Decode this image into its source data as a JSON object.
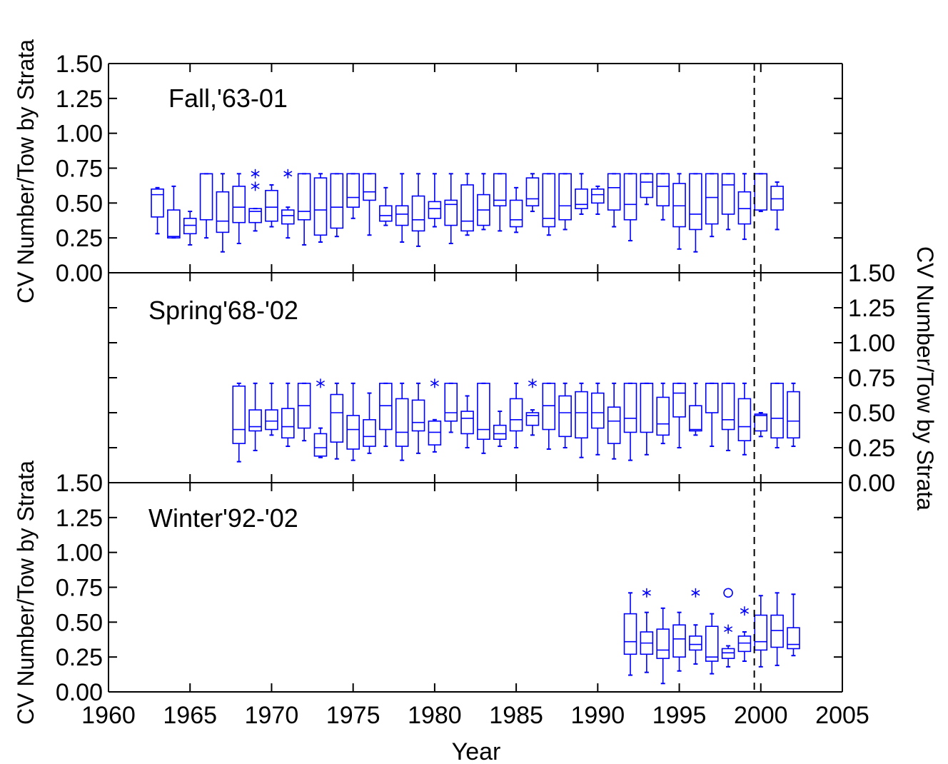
{
  "chart_data": {
    "type": "box",
    "xlabel": "Year",
    "xlim": [
      1960,
      2005
    ],
    "x_ticks": [
      "1960",
      "1965",
      "1970",
      "1975",
      "1980",
      "1985",
      "1990",
      "1995",
      "2000",
      "2005"
    ],
    "ylim": [
      0,
      1.5
    ],
    "y_ticks": [
      "0.00",
      "0.25",
      "0.50",
      "0.75",
      "1.00",
      "1.25",
      "1.50"
    ],
    "ylabel_left": "CV Number/Tow by Strata",
    "ylabel_right": "CV Number/Tow by Strata",
    "reference_line_year": 1999.6,
    "colors": {
      "boxes": "#0000ff",
      "axes": "#000000"
    },
    "panels": [
      {
        "title": "Fall,'63-01",
        "boxes": [
          {
            "year": 1963,
            "min": 0.28,
            "q1": 0.4,
            "median": 0.56,
            "q3": 0.6,
            "max": 0.61
          },
          {
            "year": 1964,
            "min": 0.25,
            "q1": 0.25,
            "median": 0.26,
            "q3": 0.45,
            "max": 0.62
          },
          {
            "year": 1965,
            "min": 0.2,
            "q1": 0.28,
            "median": 0.34,
            "q3": 0.39,
            "max": 0.44
          },
          {
            "year": 1966,
            "min": 0.25,
            "q1": 0.38,
            "median": 0.71,
            "q3": 0.71,
            "max": 0.71
          },
          {
            "year": 1967,
            "min": 0.15,
            "q1": 0.29,
            "median": 0.37,
            "q3": 0.58,
            "max": 0.71
          },
          {
            "year": 1968,
            "min": 0.21,
            "q1": 0.36,
            "median": 0.47,
            "q3": 0.62,
            "max": 0.71
          },
          {
            "year": 1969,
            "min": 0.3,
            "q1": 0.36,
            "median": 0.44,
            "q3": 0.46,
            "max": 0.46,
            "outliers": [
              {
                "y": 0.71,
                "mark": "*"
              },
              {
                "y": 0.62,
                "mark": "*"
              }
            ]
          },
          {
            "year": 1970,
            "min": 0.33,
            "q1": 0.37,
            "median": 0.47,
            "q3": 0.59,
            "max": 0.63
          },
          {
            "year": 1971,
            "min": 0.25,
            "q1": 0.35,
            "median": 0.41,
            "q3": 0.45,
            "max": 0.47,
            "outliers": [
              {
                "y": 0.71,
                "mark": "*"
              }
            ]
          },
          {
            "year": 1972,
            "min": 0.2,
            "q1": 0.38,
            "median": 0.44,
            "q3": 0.71,
            "max": 0.71
          },
          {
            "year": 1973,
            "min": 0.22,
            "q1": 0.27,
            "median": 0.45,
            "q3": 0.68,
            "max": 0.71
          },
          {
            "year": 1974,
            "min": 0.26,
            "q1": 0.32,
            "median": 0.47,
            "q3": 0.71,
            "max": 0.71
          },
          {
            "year": 1975,
            "min": 0.39,
            "q1": 0.47,
            "median": 0.54,
            "q3": 0.71,
            "max": 0.71
          },
          {
            "year": 1976,
            "min": 0.27,
            "q1": 0.52,
            "median": 0.58,
            "q3": 0.71,
            "max": 0.71
          },
          {
            "year": 1977,
            "min": 0.34,
            "q1": 0.37,
            "median": 0.41,
            "q3": 0.48,
            "max": 0.61
          },
          {
            "year": 1978,
            "min": 0.22,
            "q1": 0.34,
            "median": 0.42,
            "q3": 0.48,
            "max": 0.71
          },
          {
            "year": 1979,
            "min": 0.19,
            "q1": 0.3,
            "median": 0.38,
            "q3": 0.55,
            "max": 0.71
          },
          {
            "year": 1980,
            "min": 0.33,
            "q1": 0.39,
            "median": 0.46,
            "q3": 0.51,
            "max": 0.71
          },
          {
            "year": 1981,
            "min": 0.21,
            "q1": 0.34,
            "median": 0.49,
            "q3": 0.52,
            "max": 0.71
          },
          {
            "year": 1982,
            "min": 0.27,
            "q1": 0.3,
            "median": 0.37,
            "q3": 0.63,
            "max": 0.71
          },
          {
            "year": 1983,
            "min": 0.31,
            "q1": 0.34,
            "median": 0.45,
            "q3": 0.56,
            "max": 0.71
          },
          {
            "year": 1984,
            "min": 0.3,
            "q1": 0.48,
            "median": 0.52,
            "q3": 0.71,
            "max": 0.71
          },
          {
            "year": 1985,
            "min": 0.29,
            "q1": 0.33,
            "median": 0.38,
            "q3": 0.52,
            "max": 0.61
          },
          {
            "year": 1986,
            "min": 0.44,
            "q1": 0.48,
            "median": 0.53,
            "q3": 0.68,
            "max": 0.71
          },
          {
            "year": 1987,
            "min": 0.27,
            "q1": 0.33,
            "median": 0.39,
            "q3": 0.71,
            "max": 0.71
          },
          {
            "year": 1988,
            "min": 0.31,
            "q1": 0.38,
            "median": 0.48,
            "q3": 0.71,
            "max": 0.71
          },
          {
            "year": 1989,
            "min": 0.42,
            "q1": 0.46,
            "median": 0.49,
            "q3": 0.6,
            "max": 0.71
          },
          {
            "year": 1990,
            "min": 0.42,
            "q1": 0.5,
            "median": 0.56,
            "q3": 0.6,
            "max": 0.62
          },
          {
            "year": 1991,
            "min": 0.33,
            "q1": 0.45,
            "median": 0.61,
            "q3": 0.71,
            "max": 0.71
          },
          {
            "year": 1992,
            "min": 0.23,
            "q1": 0.38,
            "median": 0.49,
            "q3": 0.71,
            "max": 0.71
          },
          {
            "year": 1993,
            "min": 0.49,
            "q1": 0.54,
            "median": 0.65,
            "q3": 0.71,
            "max": 0.71
          },
          {
            "year": 1994,
            "min": 0.38,
            "q1": 0.48,
            "median": 0.62,
            "q3": 0.71,
            "max": 0.71
          },
          {
            "year": 1995,
            "min": 0.17,
            "q1": 0.33,
            "median": 0.48,
            "q3": 0.64,
            "max": 0.71
          },
          {
            "year": 1996,
            "min": 0.15,
            "q1": 0.31,
            "median": 0.42,
            "q3": 0.71,
            "max": 0.71
          },
          {
            "year": 1997,
            "min": 0.26,
            "q1": 0.35,
            "median": 0.54,
            "q3": 0.71,
            "max": 0.71
          },
          {
            "year": 1998,
            "min": 0.31,
            "q1": 0.42,
            "median": 0.63,
            "q3": 0.71,
            "max": 0.71
          },
          {
            "year": 1999,
            "min": 0.24,
            "q1": 0.35,
            "median": 0.46,
            "q3": 0.58,
            "max": 0.71
          },
          {
            "year": 2000,
            "min": 0.44,
            "q1": 0.45,
            "median": 0.71,
            "q3": 0.71,
            "max": 0.71
          },
          {
            "year": 2001,
            "min": 0.31,
            "q1": 0.45,
            "median": 0.53,
            "q3": 0.62,
            "max": 0.65
          }
        ]
      },
      {
        "title": "Spring'68-'02",
        "boxes": [
          {
            "year": 1968,
            "min": 0.15,
            "q1": 0.28,
            "median": 0.38,
            "q3": 0.69,
            "max": 0.71
          },
          {
            "year": 1969,
            "min": 0.23,
            "q1": 0.37,
            "median": 0.4,
            "q3": 0.52,
            "max": 0.71
          },
          {
            "year": 1970,
            "min": 0.34,
            "q1": 0.38,
            "median": 0.44,
            "q3": 0.52,
            "max": 0.71
          },
          {
            "year": 1971,
            "min": 0.26,
            "q1": 0.32,
            "median": 0.4,
            "q3": 0.53,
            "max": 0.71
          },
          {
            "year": 1972,
            "min": 0.3,
            "q1": 0.39,
            "median": 0.55,
            "q3": 0.71,
            "max": 0.71
          },
          {
            "year": 1973,
            "min": 0.18,
            "q1": 0.19,
            "median": 0.25,
            "q3": 0.35,
            "max": 0.39,
            "outliers": [
              {
                "y": 0.71,
                "mark": "*"
              }
            ]
          },
          {
            "year": 1974,
            "min": 0.17,
            "q1": 0.29,
            "median": 0.5,
            "q3": 0.63,
            "max": 0.71
          },
          {
            "year": 1975,
            "min": 0.16,
            "q1": 0.24,
            "median": 0.38,
            "q3": 0.48,
            "max": 0.71
          },
          {
            "year": 1976,
            "min": 0.21,
            "q1": 0.26,
            "median": 0.33,
            "q3": 0.45,
            "max": 0.64
          },
          {
            "year": 1977,
            "min": 0.26,
            "q1": 0.38,
            "median": 0.55,
            "q3": 0.71,
            "max": 0.71
          },
          {
            "year": 1978,
            "min": 0.16,
            "q1": 0.26,
            "median": 0.36,
            "q3": 0.6,
            "max": 0.71
          },
          {
            "year": 1979,
            "min": 0.21,
            "q1": 0.37,
            "median": 0.43,
            "q3": 0.59,
            "max": 0.71
          },
          {
            "year": 1980,
            "min": 0.22,
            "q1": 0.27,
            "median": 0.36,
            "q3": 0.44,
            "max": 0.45,
            "outliers": [
              {
                "y": 0.71,
                "mark": "*"
              }
            ]
          },
          {
            "year": 1981,
            "min": 0.36,
            "q1": 0.44,
            "median": 0.5,
            "q3": 0.71,
            "max": 0.71
          },
          {
            "year": 1982,
            "min": 0.25,
            "q1": 0.35,
            "median": 0.46,
            "q3": 0.51,
            "max": 0.62
          },
          {
            "year": 1983,
            "min": 0.21,
            "q1": 0.31,
            "median": 0.38,
            "q3": 0.71,
            "max": 0.71
          },
          {
            "year": 1984,
            "min": 0.26,
            "q1": 0.31,
            "median": 0.35,
            "q3": 0.41,
            "max": 0.51
          },
          {
            "year": 1985,
            "min": 0.25,
            "q1": 0.37,
            "median": 0.45,
            "q3": 0.6,
            "max": 0.71
          },
          {
            "year": 1986,
            "min": 0.34,
            "q1": 0.41,
            "median": 0.48,
            "q3": 0.5,
            "max": 0.52,
            "outliers": [
              {
                "y": 0.71,
                "mark": "*"
              }
            ]
          },
          {
            "year": 1987,
            "min": 0.24,
            "q1": 0.38,
            "median": 0.55,
            "q3": 0.71,
            "max": 0.71
          },
          {
            "year": 1988,
            "min": 0.25,
            "q1": 0.33,
            "median": 0.5,
            "q3": 0.62,
            "max": 0.71
          },
          {
            "year": 1989,
            "min": 0.18,
            "q1": 0.32,
            "median": 0.5,
            "q3": 0.65,
            "max": 0.71
          },
          {
            "year": 1990,
            "min": 0.2,
            "q1": 0.39,
            "median": 0.5,
            "q3": 0.64,
            "max": 0.71
          },
          {
            "year": 1991,
            "min": 0.17,
            "q1": 0.28,
            "median": 0.44,
            "q3": 0.54,
            "max": 0.71
          },
          {
            "year": 1992,
            "min": 0.16,
            "q1": 0.36,
            "median": 0.46,
            "q3": 0.71,
            "max": 0.71
          },
          {
            "year": 1993,
            "min": 0.2,
            "q1": 0.36,
            "median": 0.71,
            "q3": 0.71,
            "max": 0.71
          },
          {
            "year": 1994,
            "min": 0.28,
            "q1": 0.34,
            "median": 0.42,
            "q3": 0.61,
            "max": 0.71
          },
          {
            "year": 1995,
            "min": 0.25,
            "q1": 0.47,
            "median": 0.64,
            "q3": 0.71,
            "max": 0.71
          },
          {
            "year": 1996,
            "min": 0.34,
            "q1": 0.37,
            "median": 0.38,
            "q3": 0.55,
            "max": 0.71
          },
          {
            "year": 1997,
            "min": 0.26,
            "q1": 0.5,
            "median": 0.71,
            "q3": 0.71,
            "max": 0.71
          },
          {
            "year": 1998,
            "min": 0.23,
            "q1": 0.38,
            "median": 0.45,
            "q3": 0.71,
            "max": 0.71
          },
          {
            "year": 1999,
            "min": 0.2,
            "q1": 0.3,
            "median": 0.4,
            "q3": 0.6,
            "max": 0.71
          },
          {
            "year": 2000,
            "min": 0.33,
            "q1": 0.37,
            "median": 0.48,
            "q3": 0.49,
            "max": 0.5
          },
          {
            "year": 2001,
            "min": 0.25,
            "q1": 0.32,
            "median": 0.46,
            "q3": 0.71,
            "max": 0.71
          },
          {
            "year": 2002,
            "min": 0.26,
            "q1": 0.32,
            "median": 0.44,
            "q3": 0.65,
            "max": 0.71
          }
        ]
      },
      {
        "title": "Winter'92-'02",
        "zero_years": [
          1968,
          1969,
          1970,
          1971,
          1972,
          1973,
          1974,
          1975,
          1976,
          1977,
          1978,
          1979,
          1980,
          1981,
          1982,
          1983,
          1984,
          1985,
          1986,
          1987,
          1988,
          1989,
          1990,
          1991
        ],
        "boxes": [
          {
            "year": 1992,
            "min": 0.12,
            "q1": 0.27,
            "median": 0.36,
            "q3": 0.56,
            "max": 0.71
          },
          {
            "year": 1993,
            "min": 0.14,
            "q1": 0.27,
            "median": 0.35,
            "q3": 0.43,
            "max": 0.57,
            "outliers": [
              {
                "y": 0.71,
                "mark": "*"
              }
            ]
          },
          {
            "year": 1994,
            "min": 0.06,
            "q1": 0.24,
            "median": 0.3,
            "q3": 0.45,
            "max": 0.6
          },
          {
            "year": 1995,
            "min": 0.15,
            "q1": 0.25,
            "median": 0.38,
            "q3": 0.48,
            "max": 0.57
          },
          {
            "year": 1996,
            "min": 0.2,
            "q1": 0.3,
            "median": 0.34,
            "q3": 0.4,
            "max": 0.48,
            "outliers": [
              {
                "y": 0.71,
                "mark": "*"
              }
            ]
          },
          {
            "year": 1997,
            "min": 0.13,
            "q1": 0.22,
            "median": 0.25,
            "q3": 0.47,
            "max": 0.56
          },
          {
            "year": 1998,
            "min": 0.18,
            "q1": 0.24,
            "median": 0.28,
            "q3": 0.31,
            "max": 0.33,
            "outliers": [
              {
                "y": 0.71,
                "mark": "o"
              },
              {
                "y": 0.45,
                "mark": "*"
              }
            ]
          },
          {
            "year": 1999,
            "min": 0.22,
            "q1": 0.29,
            "median": 0.35,
            "q3": 0.4,
            "max": 0.43,
            "outliers": [
              {
                "y": 0.58,
                "mark": "*"
              }
            ]
          },
          {
            "year": 2000,
            "min": 0.18,
            "q1": 0.3,
            "median": 0.36,
            "q3": 0.55,
            "max": 0.69
          },
          {
            "year": 2001,
            "min": 0.19,
            "q1": 0.32,
            "median": 0.44,
            "q3": 0.55,
            "max": 0.71
          },
          {
            "year": 2002,
            "min": 0.26,
            "q1": 0.31,
            "median": 0.34,
            "q3": 0.46,
            "max": 0.7
          }
        ]
      }
    ]
  }
}
